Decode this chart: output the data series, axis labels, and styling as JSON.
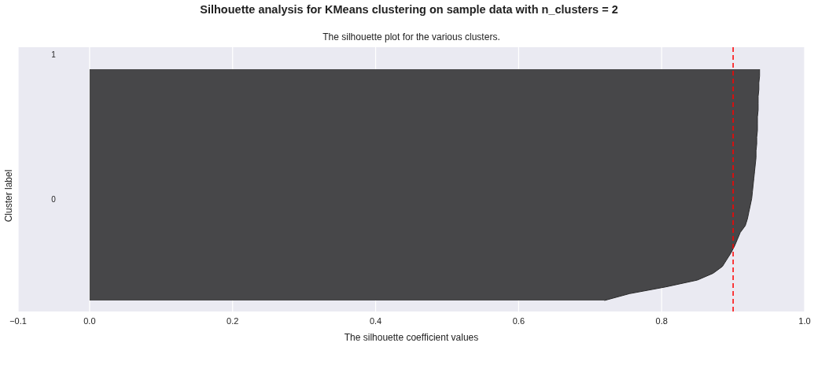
{
  "chart_data": {
    "type": "area",
    "orientation": "horizontal",
    "title": "Silhouette analysis for KMeans clustering on sample data with n_clusters = 2",
    "subtitle": "The silhouette plot for the various clusters.",
    "xlabel": "The silhouette coefficient values",
    "ylabel": "Cluster label",
    "categories": [
      null,
      null,
      null,
      null,
      null,
      null,
      null,
      null,
      null,
      null,
      null,
      null,
      null,
      null,
      null,
      null,
      null,
      null,
      null,
      null,
      null,
      null,
      null,
      null,
      null,
      null,
      null,
      null,
      null,
      null,
      null,
      null,
      null,
      null,
      null
    ],
    "series": [
      {
        "color": "#474749",
        "values": [
          0.937,
          0.937,
          0.936,
          0.936,
          0.935,
          0.935,
          0.935,
          0.934,
          0.934,
          0.934,
          0.933,
          0.933,
          0.932,
          0.932,
          0.931,
          0.93,
          0.929,
          0.928,
          0.927,
          0.926,
          0.924,
          0.922,
          0.92,
          0.917,
          0.91,
          0.906,
          0.902,
          0.897,
          0.891,
          0.885,
          0.872,
          0.85,
          0.806,
          0.755,
          0.72
        ]
      }
    ],
    "xlim": [
      -0.1,
      1.0
    ],
    "xticks": [
      {
        "value": -0.1,
        "label": "−0.1"
      },
      {
        "value": 0,
        "label": "0.0"
      },
      {
        "value": 0.2,
        "label": "0.2"
      },
      {
        "value": 0.4,
        "label": "0.4"
      },
      {
        "value": 0.6,
        "label": "0.6"
      },
      {
        "value": 0.8,
        "label": "0.8"
      },
      {
        "value": 1.0,
        "label": "1.0"
      }
    ],
    "tick_labels": "x",
    "grid": "x",
    "ref_lines": [
      {
        "axis": "x",
        "value": 0.9,
        "color": "#ff0000",
        "line_style": "dashed"
      }
    ],
    "annotations": [
      "1",
      "0"
    ]
  }
}
